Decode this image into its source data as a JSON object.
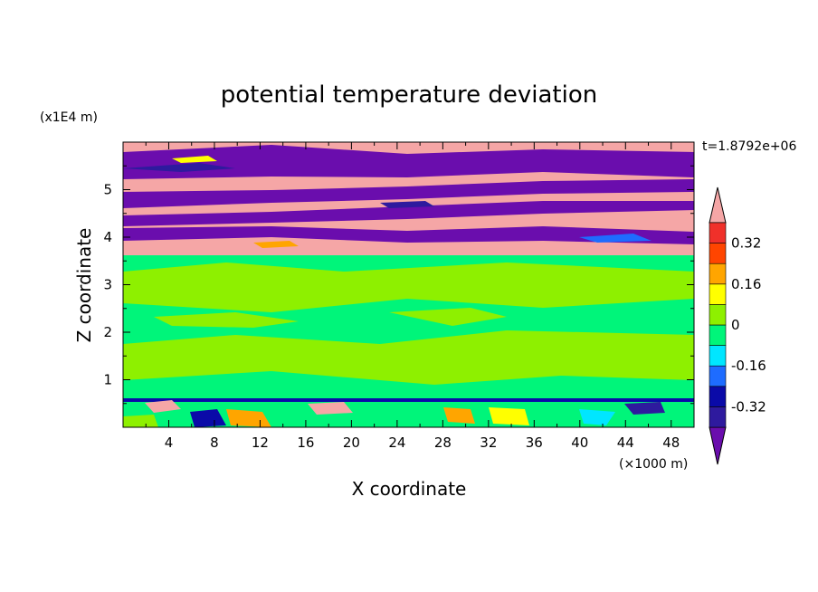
{
  "chart_data": {
    "type": "heatmap",
    "title": "potential temperature deviation",
    "xlabel": "X coordinate",
    "ylabel": "Z coordinate",
    "x_unit": "(×1000 m)",
    "y_unit": "(x1E4 m)",
    "time_label": "t=1.8792e+06",
    "xlim": [
      0,
      50
    ],
    "ylim": [
      0,
      6
    ],
    "x_ticks": [
      4,
      8,
      12,
      16,
      20,
      24,
      28,
      32,
      36,
      40,
      44,
      48
    ],
    "x_tick_labels": [
      "4",
      "8",
      "12",
      "16",
      "20",
      "24",
      "28",
      "32",
      "36",
      "40",
      "44",
      "48"
    ],
    "y_ticks": [
      1,
      2,
      3,
      4,
      5
    ],
    "y_tick_labels": [
      "1",
      "2",
      "3",
      "4",
      "5"
    ],
    "colorbar": {
      "levels": [
        -0.4,
        -0.32,
        -0.24,
        -0.16,
        -0.08,
        0,
        0.08,
        0.16,
        0.24,
        0.32,
        0.4
      ],
      "labeled_levels": [
        -0.32,
        -0.16,
        0,
        0.16,
        0.32
      ],
      "labels": [
        "-0.32",
        "-0.16",
        "0",
        "0.16",
        "0.32"
      ],
      "colors": [
        "#6a0dad",
        "#2e1a9e",
        "#0a0aa8",
        "#1e6cff",
        "#00e6ff",
        "#00f57a",
        "#8ef000",
        "#ffff00",
        "#ffa500",
        "#ff4500",
        "#f0302a",
        "#f5a6a6"
      ],
      "extend": "both"
    },
    "regions": [
      {
        "z_range": [
          0,
          0.6
        ],
        "description": "mixed colors near ground"
      },
      {
        "z_range": [
          0.6,
          3.7
        ],
        "value_range": [
          -0.08,
          0.08
        ]
      },
      {
        "z_range": [
          3.7,
          6.0
        ],
        "alternating_bands": [
          ">0.4",
          "<-0.4"
        ]
      }
    ]
  }
}
